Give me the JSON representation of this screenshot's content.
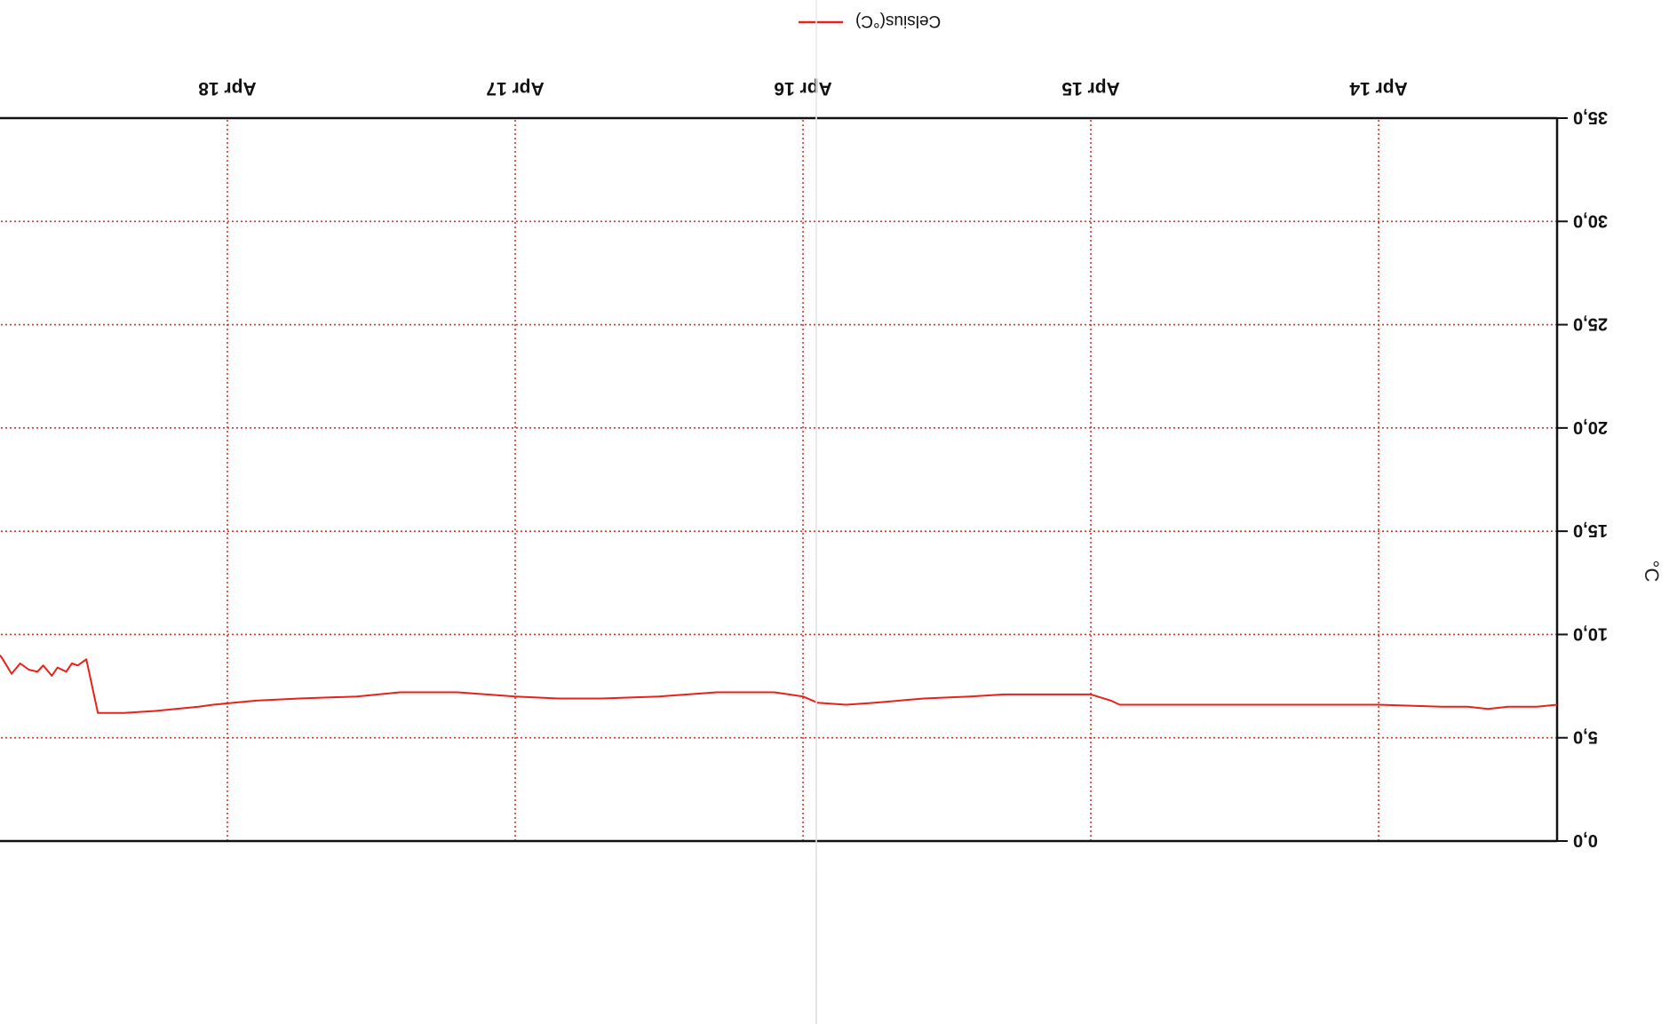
{
  "chart_data": {
    "type": "line",
    "orientation": "rotated-180",
    "ylabel": "°C",
    "ylim": [
      0,
      35
    ],
    "yticks": [
      "0,0",
      "5,0",
      "10,0",
      "15,0",
      "20,0",
      "25,0",
      "30,0",
      "35,0"
    ],
    "ytick_values": [
      0,
      5,
      10,
      15,
      20,
      25,
      30,
      35
    ],
    "xlabel": "",
    "xticks": [
      "Apr 14",
      "Apr 15",
      "Apr 16",
      "Apr 17",
      "Apr 18"
    ],
    "xtick_values": [
      1,
      2,
      3,
      4,
      5
    ],
    "x_domain": [
      0.38,
      5.79
    ],
    "grid": true,
    "legend": {
      "position": "top",
      "entries": [
        "Celsius(°C)"
      ]
    },
    "series": [
      {
        "name": "Celsius(°C)",
        "color": "#e8211a",
        "points": [
          [
            0.38,
            6.6
          ],
          [
            0.45,
            6.5
          ],
          [
            0.55,
            6.5
          ],
          [
            0.62,
            6.4
          ],
          [
            0.69,
            6.5
          ],
          [
            0.78,
            6.5
          ],
          [
            1.0,
            6.6
          ],
          [
            1.3,
            6.6
          ],
          [
            1.6,
            6.6
          ],
          [
            1.9,
            6.6
          ],
          [
            1.93,
            6.8
          ],
          [
            2.0,
            7.1
          ],
          [
            2.1,
            7.1
          ],
          [
            2.3,
            7.1
          ],
          [
            2.42,
            7.0
          ],
          [
            2.58,
            6.9
          ],
          [
            2.75,
            6.7
          ],
          [
            2.85,
            6.6
          ],
          [
            2.95,
            6.7
          ],
          [
            3.0,
            7.0
          ],
          [
            3.1,
            7.2
          ],
          [
            3.3,
            7.2
          ],
          [
            3.5,
            7.0
          ],
          [
            3.7,
            6.9
          ],
          [
            3.85,
            6.9
          ],
          [
            4.0,
            7.0
          ],
          [
            4.2,
            7.2
          ],
          [
            4.4,
            7.2
          ],
          [
            4.55,
            7.0
          ],
          [
            4.75,
            6.9
          ],
          [
            4.9,
            6.8
          ],
          [
            5.05,
            6.6
          ],
          [
            5.1,
            6.5
          ],
          [
            5.25,
            6.3
          ],
          [
            5.36,
            6.2
          ],
          [
            5.45,
            6.2
          ],
          [
            5.49,
            8.8
          ],
          [
            5.52,
            8.5
          ],
          [
            5.54,
            8.6
          ],
          [
            5.56,
            8.2
          ],
          [
            5.59,
            8.4
          ],
          [
            5.61,
            8.0
          ],
          [
            5.64,
            8.5
          ],
          [
            5.66,
            8.2
          ],
          [
            5.69,
            8.3
          ],
          [
            5.72,
            8.6
          ],
          [
            5.75,
            8.1
          ],
          [
            5.78,
            8.8
          ],
          [
            5.79,
            9.0
          ]
        ]
      }
    ]
  }
}
